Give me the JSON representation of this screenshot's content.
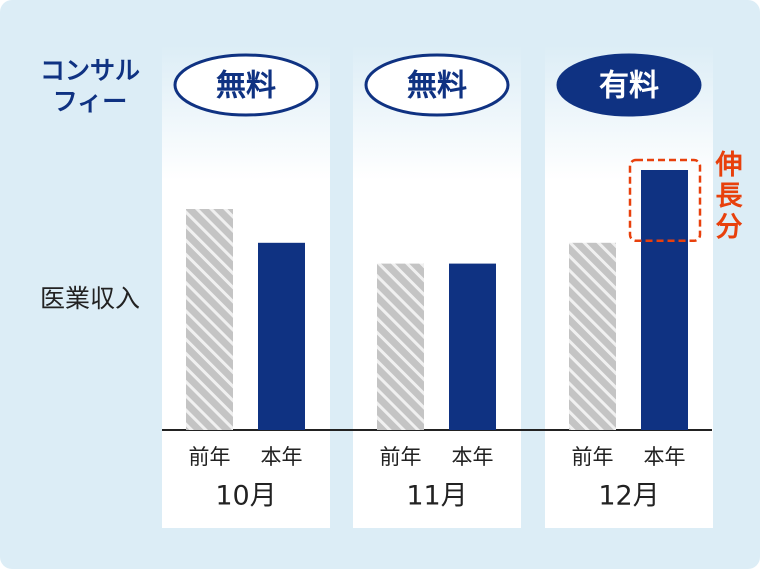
{
  "row_labels": {
    "fee": [
      "コンサル",
      "フィー"
    ],
    "revenue": "医業収入"
  },
  "chart_data": {
    "type": "bar",
    "categories": [
      "10月",
      "11月",
      "12月"
    ],
    "fee_labels": [
      "無料",
      "無料",
      "有料"
    ],
    "fee_colors": [
      "#ffffff",
      "#ffffff",
      "#0f3282"
    ],
    "series": [
      {
        "name": "前年",
        "color": "#c4c4c4",
        "values": [
          85,
          64,
          72
        ]
      },
      {
        "name": "本年",
        "color": "#0f3282",
        "values": [
          72,
          64,
          100
        ]
      }
    ],
    "annotation": "伸長分",
    "annotation_color": "#e8400c"
  }
}
